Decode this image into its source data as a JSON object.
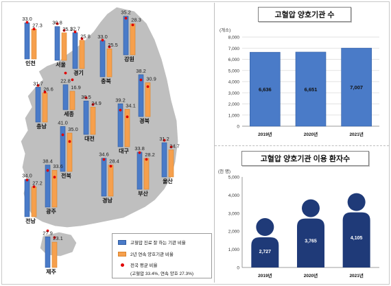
{
  "chart_data": [
    {
      "type": "bar",
      "title": "",
      "categories": [
        "인천",
        "서울",
        "경기",
        "강원",
        "충북",
        "충남",
        "세종",
        "대전",
        "경북",
        "대구",
        "전북",
        "울산",
        "부산",
        "경남",
        "광주",
        "전남",
        "제주"
      ],
      "series": [
        {
          "name": "고혈압 진료 잘 하는 기관 비율",
          "color": "#4a7bc8",
          "values": [
            33.0,
            30.8,
            32.7,
            35.2,
            33.0,
            31.7,
            22.8,
            30.5,
            38.2,
            39.2,
            41.0,
            31.2,
            33.8,
            34.6,
            38.4,
            34.0,
            27.9
          ]
        },
        {
          "name": "2년 연속 양호기관 비율",
          "color": "#f6a04d",
          "values": [
            27.3,
            25.1,
            25.8,
            28.3,
            25.5,
            26.6,
            16.9,
            24.9,
            30.9,
            34.1,
            35.0,
            24.7,
            28.2,
            28.4,
            33.6,
            27.2,
            23.1
          ]
        }
      ],
      "legend": {
        "bar1": "고혈압 진료 잘 하는 기관 비율",
        "bar2": "2년 연속 양호기관 비율",
        "dot": "전국 평균 비율",
        "dot_detail": "(고혈압 33.4%, 연속 양호 27.3%)"
      },
      "national_average": {
        "bar1": 33.4,
        "bar2": 27.3
      }
    },
    {
      "type": "bar",
      "title": "고혈압 양호기관 수",
      "unit_label": "(개소)",
      "categories": [
        "2019년",
        "2020년",
        "2021년"
      ],
      "values": [
        6636,
        6651,
        7007
      ],
      "value_labels": [
        "6,636",
        "6,651",
        "7,007"
      ],
      "ylim": [
        0,
        8000
      ],
      "yticks": [
        "0",
        "1,000",
        "2,000",
        "3,000",
        "4,000",
        "5,000",
        "6,000",
        "7,000",
        "8,000"
      ],
      "color": "#4a7bc8"
    },
    {
      "type": "bar",
      "title": "고혈압 양호기관 이용 환자수",
      "unit_label": "(천 명)",
      "categories": [
        "2019년",
        "2020년",
        "2021년"
      ],
      "values": [
        2727,
        3765,
        4105
      ],
      "value_labels": [
        "2,727",
        "3,765",
        "4,105"
      ],
      "ylim": [
        0,
        5000
      ],
      "yticks": [
        "0",
        "1,000",
        "2,000",
        "3,000",
        "4,000",
        "5,000"
      ],
      "color": "#1f3a78"
    }
  ]
}
